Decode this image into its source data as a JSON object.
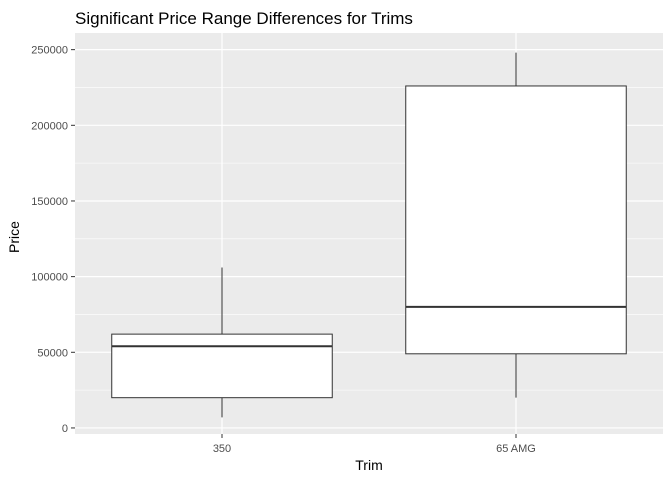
{
  "chart_data": {
    "type": "box",
    "title": "Significant Price Range Differences for Trims",
    "xlabel": "Trim",
    "ylabel": "Price",
    "ylim": [
      -4000,
      261000
    ],
    "yticks": [
      0,
      50000,
      100000,
      150000,
      200000,
      250000
    ],
    "ytick_labels": [
      "0",
      "50000",
      "100000",
      "150000",
      "200000",
      "250000"
    ],
    "categories": [
      "350",
      "65 AMG"
    ],
    "boxes": [
      {
        "category": "350",
        "min": 7000,
        "q1": 20000,
        "median": 54000,
        "q3": 62000,
        "max": 106000
      },
      {
        "category": "65 AMG",
        "min": 20000,
        "q1": 49000,
        "median": 80000,
        "q3": 226000,
        "max": 248000
      }
    ],
    "grid": true,
    "legend": "none",
    "colors": {
      "panel_background": "#ebebeb",
      "grid_major": "#ffffff",
      "box_fill": "#ffffff",
      "box_stroke": "#333333"
    }
  }
}
